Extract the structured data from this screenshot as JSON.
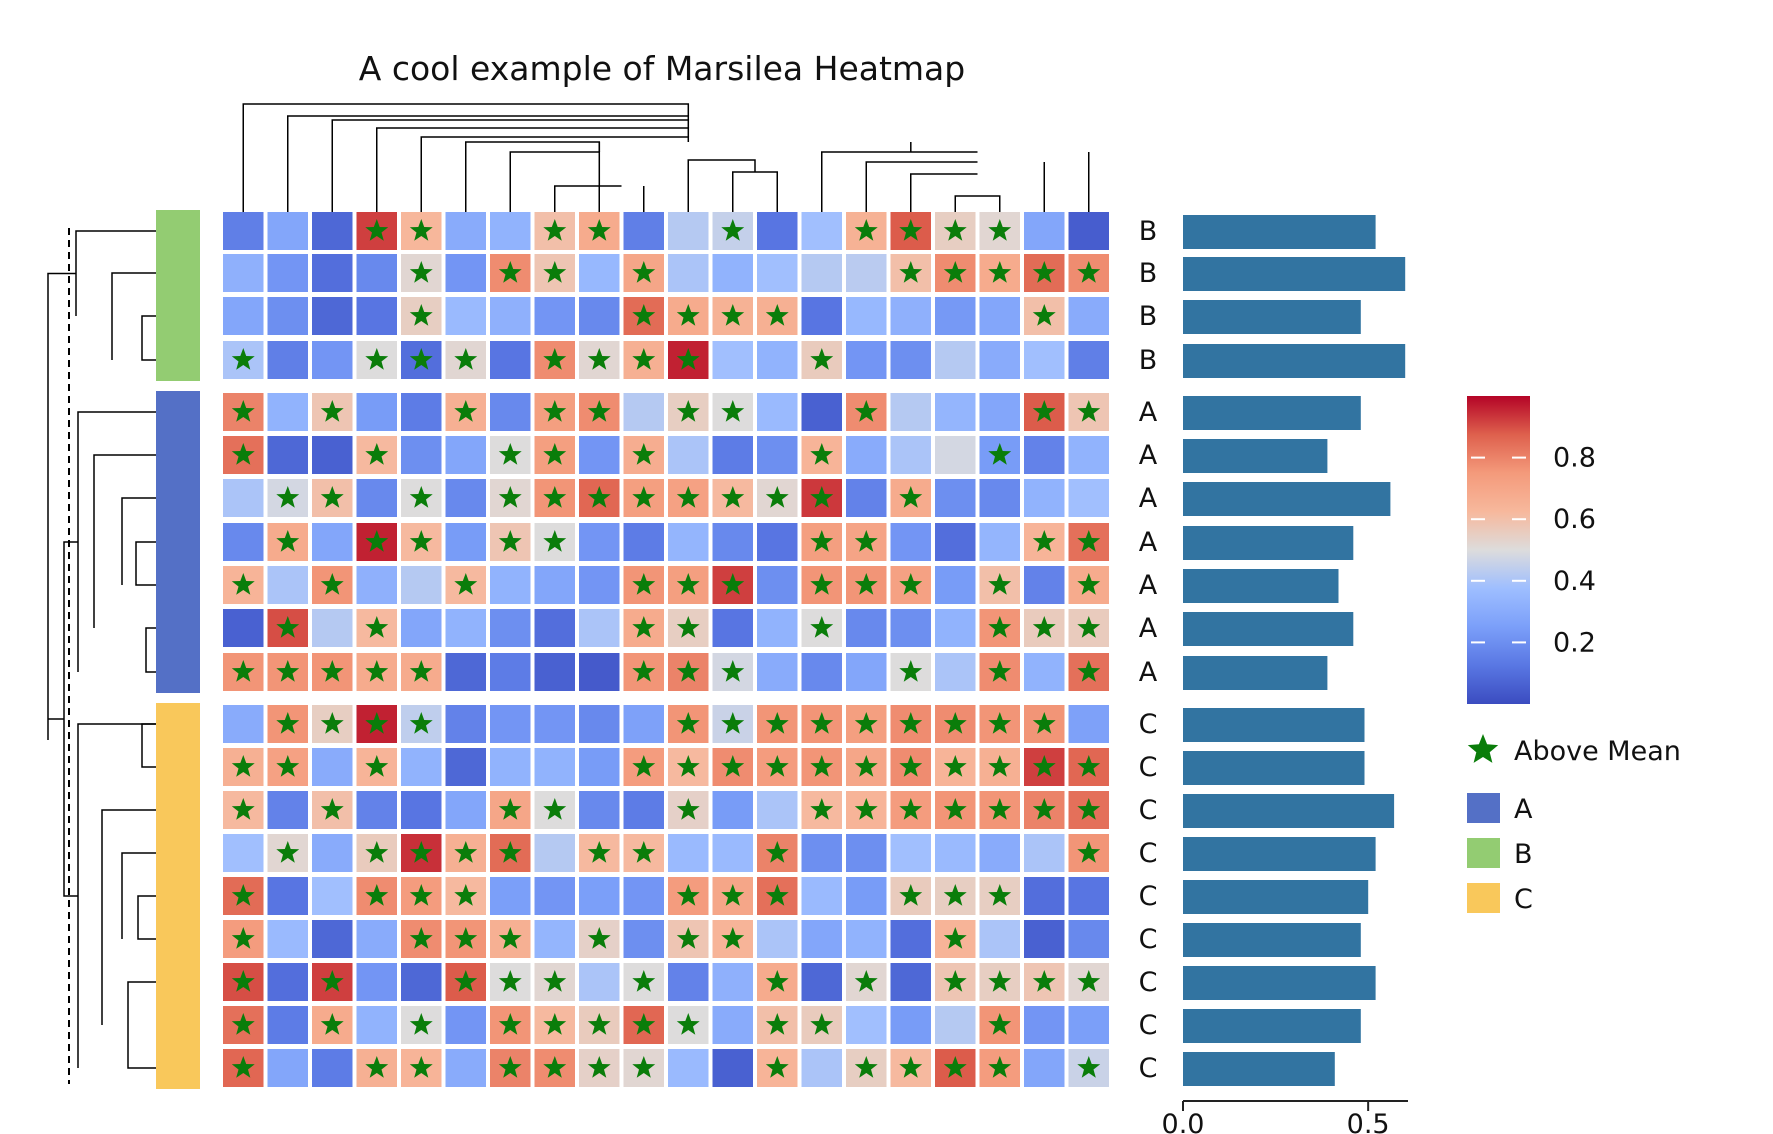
{
  "chart_data": {
    "type": "heatmap",
    "title": "A cool example of Marsilea Heatmap",
    "columns": 20,
    "groups": [
      {
        "name": "B",
        "color": "#93cc72",
        "rows": 4
      },
      {
        "name": "A",
        "color": "#5470c6",
        "rows": 7
      },
      {
        "name": "C",
        "color": "#f9c85b",
        "rows": 9
      }
    ],
    "row_labels": [
      "B",
      "B",
      "B",
      "B",
      "A",
      "A",
      "A",
      "A",
      "A",
      "A",
      "A",
      "C",
      "C",
      "C",
      "C",
      "C",
      "C",
      "C",
      "C",
      "C"
    ],
    "values": [
      [
        0.15,
        0.28,
        0.08,
        0.92,
        0.63,
        0.3,
        0.33,
        0.6,
        0.68,
        0.15,
        0.42,
        0.45,
        0.12,
        0.38,
        0.65,
        0.88,
        0.55,
        0.52,
        0.28,
        0.05
      ],
      [
        0.32,
        0.22,
        0.1,
        0.18,
        0.52,
        0.22,
        0.78,
        0.58,
        0.35,
        0.7,
        0.4,
        0.33,
        0.38,
        0.42,
        0.43,
        0.6,
        0.78,
        0.68,
        0.85,
        0.78
      ],
      [
        0.28,
        0.2,
        0.08,
        0.12,
        0.55,
        0.36,
        0.32,
        0.22,
        0.18,
        0.85,
        0.68,
        0.65,
        0.66,
        0.12,
        0.35,
        0.32,
        0.23,
        0.28,
        0.6,
        0.3
      ],
      [
        0.4,
        0.15,
        0.22,
        0.5,
        0.1,
        0.52,
        0.12,
        0.78,
        0.52,
        0.66,
        0.96,
        0.38,
        0.33,
        0.56,
        0.22,
        0.2,
        0.42,
        0.3,
        0.38,
        0.15
      ],
      [
        0.8,
        0.33,
        0.58,
        0.24,
        0.14,
        0.66,
        0.18,
        0.73,
        0.78,
        0.42,
        0.55,
        0.5,
        0.36,
        0.06,
        0.78,
        0.42,
        0.34,
        0.28,
        0.88,
        0.58
      ],
      [
        0.84,
        0.08,
        0.06,
        0.62,
        0.2,
        0.28,
        0.5,
        0.73,
        0.22,
        0.67,
        0.4,
        0.14,
        0.2,
        0.64,
        0.3,
        0.4,
        0.48,
        0.24,
        0.16,
        0.33
      ],
      [
        0.4,
        0.48,
        0.6,
        0.18,
        0.5,
        0.18,
        0.52,
        0.76,
        0.86,
        0.73,
        0.72,
        0.62,
        0.52,
        0.93,
        0.16,
        0.68,
        0.2,
        0.18,
        0.33,
        0.38
      ],
      [
        0.18,
        0.68,
        0.28,
        0.96,
        0.62,
        0.24,
        0.58,
        0.5,
        0.22,
        0.14,
        0.34,
        0.18,
        0.12,
        0.73,
        0.71,
        0.22,
        0.1,
        0.34,
        0.64,
        0.84
      ],
      [
        0.64,
        0.4,
        0.76,
        0.32,
        0.42,
        0.62,
        0.33,
        0.28,
        0.22,
        0.76,
        0.73,
        0.92,
        0.2,
        0.76,
        0.76,
        0.72,
        0.24,
        0.6,
        0.16,
        0.68
      ],
      [
        0.06,
        0.9,
        0.42,
        0.62,
        0.28,
        0.33,
        0.2,
        0.1,
        0.4,
        0.68,
        0.55,
        0.12,
        0.33,
        0.5,
        0.18,
        0.2,
        0.33,
        0.76,
        0.56,
        0.56
      ],
      [
        0.76,
        0.76,
        0.76,
        0.68,
        0.68,
        0.08,
        0.14,
        0.06,
        0.04,
        0.76,
        0.8,
        0.48,
        0.3,
        0.18,
        0.28,
        0.5,
        0.4,
        0.78,
        0.33,
        0.84
      ],
      [
        0.3,
        0.76,
        0.55,
        0.96,
        0.44,
        0.16,
        0.22,
        0.22,
        0.18,
        0.26,
        0.76,
        0.46,
        0.76,
        0.76,
        0.73,
        0.78,
        0.78,
        0.76,
        0.76,
        0.26
      ],
      [
        0.66,
        0.72,
        0.3,
        0.64,
        0.33,
        0.08,
        0.33,
        0.33,
        0.24,
        0.74,
        0.62,
        0.78,
        0.74,
        0.76,
        0.7,
        0.78,
        0.64,
        0.66,
        0.92,
        0.86
      ],
      [
        0.62,
        0.16,
        0.6,
        0.16,
        0.12,
        0.28,
        0.7,
        0.5,
        0.18,
        0.14,
        0.54,
        0.24,
        0.4,
        0.62,
        0.64,
        0.74,
        0.76,
        0.76,
        0.8,
        0.84
      ],
      [
        0.38,
        0.52,
        0.3,
        0.56,
        0.94,
        0.66,
        0.85,
        0.42,
        0.62,
        0.62,
        0.36,
        0.36,
        0.8,
        0.2,
        0.2,
        0.38,
        0.36,
        0.3,
        0.4,
        0.76
      ],
      [
        0.85,
        0.12,
        0.38,
        0.78,
        0.74,
        0.62,
        0.25,
        0.22,
        0.25,
        0.22,
        0.74,
        0.7,
        0.84,
        0.36,
        0.24,
        0.56,
        0.55,
        0.55,
        0.1,
        0.12
      ],
      [
        0.74,
        0.36,
        0.08,
        0.3,
        0.78,
        0.76,
        0.66,
        0.34,
        0.54,
        0.2,
        0.58,
        0.64,
        0.4,
        0.28,
        0.33,
        0.1,
        0.64,
        0.4,
        0.06,
        0.18
      ],
      [
        0.9,
        0.1,
        0.92,
        0.22,
        0.08,
        0.88,
        0.5,
        0.52,
        0.4,
        0.5,
        0.16,
        0.32,
        0.68,
        0.08,
        0.52,
        0.08,
        0.58,
        0.55,
        0.58,
        0.52
      ],
      [
        0.84,
        0.14,
        0.68,
        0.33,
        0.5,
        0.22,
        0.76,
        0.62,
        0.56,
        0.86,
        0.5,
        0.3,
        0.6,
        0.56,
        0.38,
        0.24,
        0.42,
        0.76,
        0.22,
        0.25
      ],
      [
        0.86,
        0.28,
        0.14,
        0.66,
        0.64,
        0.3,
        0.8,
        0.78,
        0.54,
        0.52,
        0.36,
        0.06,
        0.64,
        0.4,
        0.55,
        0.62,
        0.88,
        0.74,
        0.28,
        0.46
      ]
    ],
    "above_mean": [
      [
        0,
        0,
        0,
        1,
        1,
        0,
        0,
        1,
        1,
        0,
        0,
        1,
        0,
        0,
        1,
        1,
        1,
        1,
        0,
        0
      ],
      [
        0,
        0,
        0,
        0,
        1,
        0,
        1,
        1,
        0,
        1,
        0,
        0,
        0,
        0,
        0,
        1,
        1,
        1,
        1,
        1
      ],
      [
        0,
        0,
        0,
        0,
        1,
        0,
        0,
        0,
        0,
        1,
        1,
        1,
        1,
        0,
        0,
        0,
        0,
        0,
        1,
        0
      ],
      [
        1,
        0,
        0,
        1,
        1,
        1,
        0,
        1,
        1,
        1,
        1,
        0,
        0,
        1,
        0,
        0,
        0,
        0,
        0,
        0
      ],
      [
        1,
        0,
        1,
        0,
        0,
        1,
        0,
        1,
        1,
        0,
        1,
        1,
        0,
        0,
        1,
        0,
        0,
        0,
        1,
        1
      ],
      [
        1,
        0,
        0,
        1,
        0,
        0,
        1,
        1,
        0,
        1,
        0,
        0,
        0,
        1,
        0,
        0,
        0,
        1,
        0,
        0
      ],
      [
        0,
        1,
        1,
        0,
        1,
        0,
        1,
        1,
        1,
        1,
        1,
        1,
        1,
        1,
        0,
        1,
        0,
        0,
        0,
        0
      ],
      [
        0,
        1,
        0,
        1,
        1,
        0,
        1,
        1,
        0,
        0,
        0,
        0,
        0,
        1,
        1,
        0,
        0,
        0,
        1,
        1
      ],
      [
        1,
        0,
        1,
        0,
        0,
        1,
        0,
        0,
        0,
        1,
        1,
        1,
        0,
        1,
        1,
        1,
        0,
        1,
        0,
        1
      ],
      [
        0,
        1,
        0,
        1,
        0,
        0,
        0,
        0,
        0,
        1,
        1,
        0,
        0,
        1,
        0,
        0,
        0,
        1,
        1,
        1
      ],
      [
        1,
        1,
        1,
        1,
        1,
        0,
        0,
        0,
        0,
        1,
        1,
        1,
        0,
        0,
        0,
        1,
        0,
        1,
        0,
        1
      ],
      [
        0,
        1,
        1,
        1,
        1,
        0,
        0,
        0,
        0,
        0,
        1,
        1,
        1,
        1,
        1,
        1,
        1,
        1,
        1,
        0
      ],
      [
        1,
        1,
        0,
        1,
        0,
        0,
        0,
        0,
        0,
        1,
        1,
        1,
        1,
        1,
        1,
        1,
        1,
        1,
        1,
        1
      ],
      [
        1,
        0,
        1,
        0,
        0,
        0,
        1,
        1,
        0,
        0,
        1,
        0,
        0,
        1,
        1,
        1,
        1,
        1,
        1,
        1
      ],
      [
        0,
        1,
        0,
        1,
        1,
        1,
        1,
        0,
        1,
        1,
        0,
        0,
        1,
        0,
        0,
        0,
        0,
        0,
        0,
        1
      ],
      [
        1,
        0,
        0,
        1,
        1,
        1,
        0,
        0,
        0,
        0,
        1,
        1,
        1,
        0,
        0,
        1,
        1,
        1,
        0,
        0
      ],
      [
        1,
        0,
        0,
        0,
        1,
        1,
        1,
        0,
        1,
        0,
        1,
        1,
        0,
        0,
        0,
        0,
        1,
        0,
        0,
        0
      ],
      [
        1,
        0,
        1,
        0,
        0,
        1,
        1,
        1,
        0,
        1,
        0,
        0,
        1,
        0,
        1,
        0,
        1,
        1,
        1,
        1
      ],
      [
        1,
        0,
        1,
        0,
        1,
        0,
        1,
        1,
        1,
        1,
        1,
        0,
        1,
        1,
        0,
        0,
        0,
        1,
        0,
        0
      ],
      [
        1,
        0,
        0,
        1,
        1,
        0,
        1,
        1,
        1,
        1,
        0,
        0,
        1,
        0,
        1,
        1,
        1,
        1,
        0,
        1
      ]
    ],
    "bars": {
      "values": [
        0.52,
        0.6,
        0.48,
        0.6,
        0.48,
        0.39,
        0.56,
        0.46,
        0.42,
        0.46,
        0.39,
        0.49,
        0.49,
        0.57,
        0.52,
        0.5,
        0.48,
        0.52,
        0.48,
        0.41
      ],
      "color": "#3274a1",
      "xlim": [
        0,
        0.64
      ],
      "ticks": [
        0.0,
        0.5
      ],
      "tick_labels": [
        "0.0",
        "0.5"
      ]
    },
    "colorbar": {
      "colormap": "coolwarm",
      "range": [
        0,
        1
      ],
      "ticks": [
        0.2,
        0.4,
        0.6,
        0.8
      ],
      "tick_labels": [
        "0.2",
        "0.4",
        "0.6",
        "0.8"
      ]
    },
    "legend": {
      "marker_label": "Above Mean",
      "marker_color": "#0a7d0a",
      "entries": [
        {
          "label": "A",
          "color": "#5470c6"
        },
        {
          "label": "B",
          "color": "#93cc72"
        },
        {
          "label": "C",
          "color": "#f9c85b"
        }
      ],
      "position": "right"
    },
    "dendrograms": {
      "columns": "top",
      "rows": "left"
    }
  }
}
